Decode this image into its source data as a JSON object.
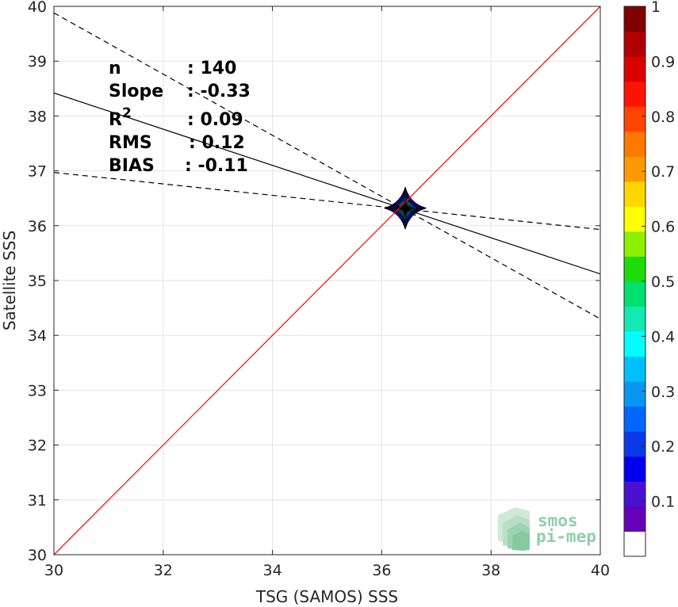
{
  "chart_data": {
    "type": "scatter",
    "title": "",
    "xlabel": "TSG (SAMOS) SSS",
    "ylabel": "Satellite SSS",
    "xlim": [
      30,
      40
    ],
    "ylim": [
      30,
      40
    ],
    "xticks": [
      30,
      32,
      34,
      36,
      38,
      40
    ],
    "yticks": [
      30,
      31,
      32,
      33,
      34,
      35,
      36,
      37,
      38,
      39,
      40
    ],
    "grid": true,
    "stats": [
      {
        "label": "n",
        "value": ": 140"
      },
      {
        "label": "Slope",
        "value": ": -0.33"
      },
      {
        "label": "R",
        "sup": "2",
        "value": ": 0.09"
      },
      {
        "label": "RMS",
        "value": ": 0.12"
      },
      {
        "label": "BIAS",
        "value": ": -0.11"
      }
    ],
    "identity_line": {
      "x": [
        30,
        40
      ],
      "y": [
        30,
        40
      ],
      "color": "#ff0000"
    },
    "regression_line": {
      "x": [
        30,
        40
      ],
      "y": [
        38.42,
        35.12
      ],
      "color": "#000000"
    },
    "confidence_upper": {
      "x": [
        30,
        40
      ],
      "y": [
        39.88,
        34.3
      ],
      "style": "dashed"
    },
    "confidence_lower": {
      "x": [
        30,
        40
      ],
      "y": [
        36.97,
        35.93
      ],
      "style": "dashed"
    },
    "density_center": {
      "x": 36.43,
      "y": 36.32
    },
    "density_contours": [
      {
        "level": 0.05,
        "half_width": 0.38,
        "color": "#6a00c0"
      },
      {
        "level": 0.15,
        "half_width": 0.33,
        "color": "#1010e0"
      },
      {
        "level": 0.25,
        "half_width": 0.27,
        "color": "#0070f0"
      },
      {
        "level": 0.35,
        "half_width": 0.22,
        "color": "#00c8ff"
      },
      {
        "level": 0.45,
        "half_width": 0.17,
        "color": "#00e090"
      },
      {
        "level": 0.55,
        "half_width": 0.13,
        "color": "#40e020"
      },
      {
        "level": 0.65,
        "half_width": 0.1,
        "color": "#f0f000"
      },
      {
        "level": 0.75,
        "half_width": 0.075,
        "color": "#ff9000"
      },
      {
        "level": 0.85,
        "half_width": 0.05,
        "color": "#ff2000"
      },
      {
        "level": 0.95,
        "half_width": 0.025,
        "color": "#a00000"
      }
    ],
    "colorbar": {
      "range": [
        0,
        1
      ],
      "ticks": [
        0.1,
        0.2,
        0.3,
        0.4,
        0.5,
        0.6,
        0.7,
        0.8,
        0.9,
        1
      ],
      "tick_labels": [
        "0.1",
        "0.2",
        "0.3",
        "0.4",
        "0.5",
        "0.6",
        "0.7",
        "0.8",
        "0.9",
        "1"
      ],
      "colors": [
        "#ffffff",
        "#6600b8",
        "#4a10d0",
        "#0000f0",
        "#0a3ae8",
        "#0066ff",
        "#0a96f0",
        "#00bfff",
        "#00ffff",
        "#14e8b4",
        "#00e070",
        "#1edc0a",
        "#8cf000",
        "#ffff00",
        "#ffd700",
        "#ff9900",
        "#ff7800",
        "#ff4400",
        "#ff1400",
        "#dd0000",
        "#b00000",
        "#800000"
      ]
    }
  },
  "logo": {
    "line1": "smos",
    "line2": "pi-mep"
  }
}
